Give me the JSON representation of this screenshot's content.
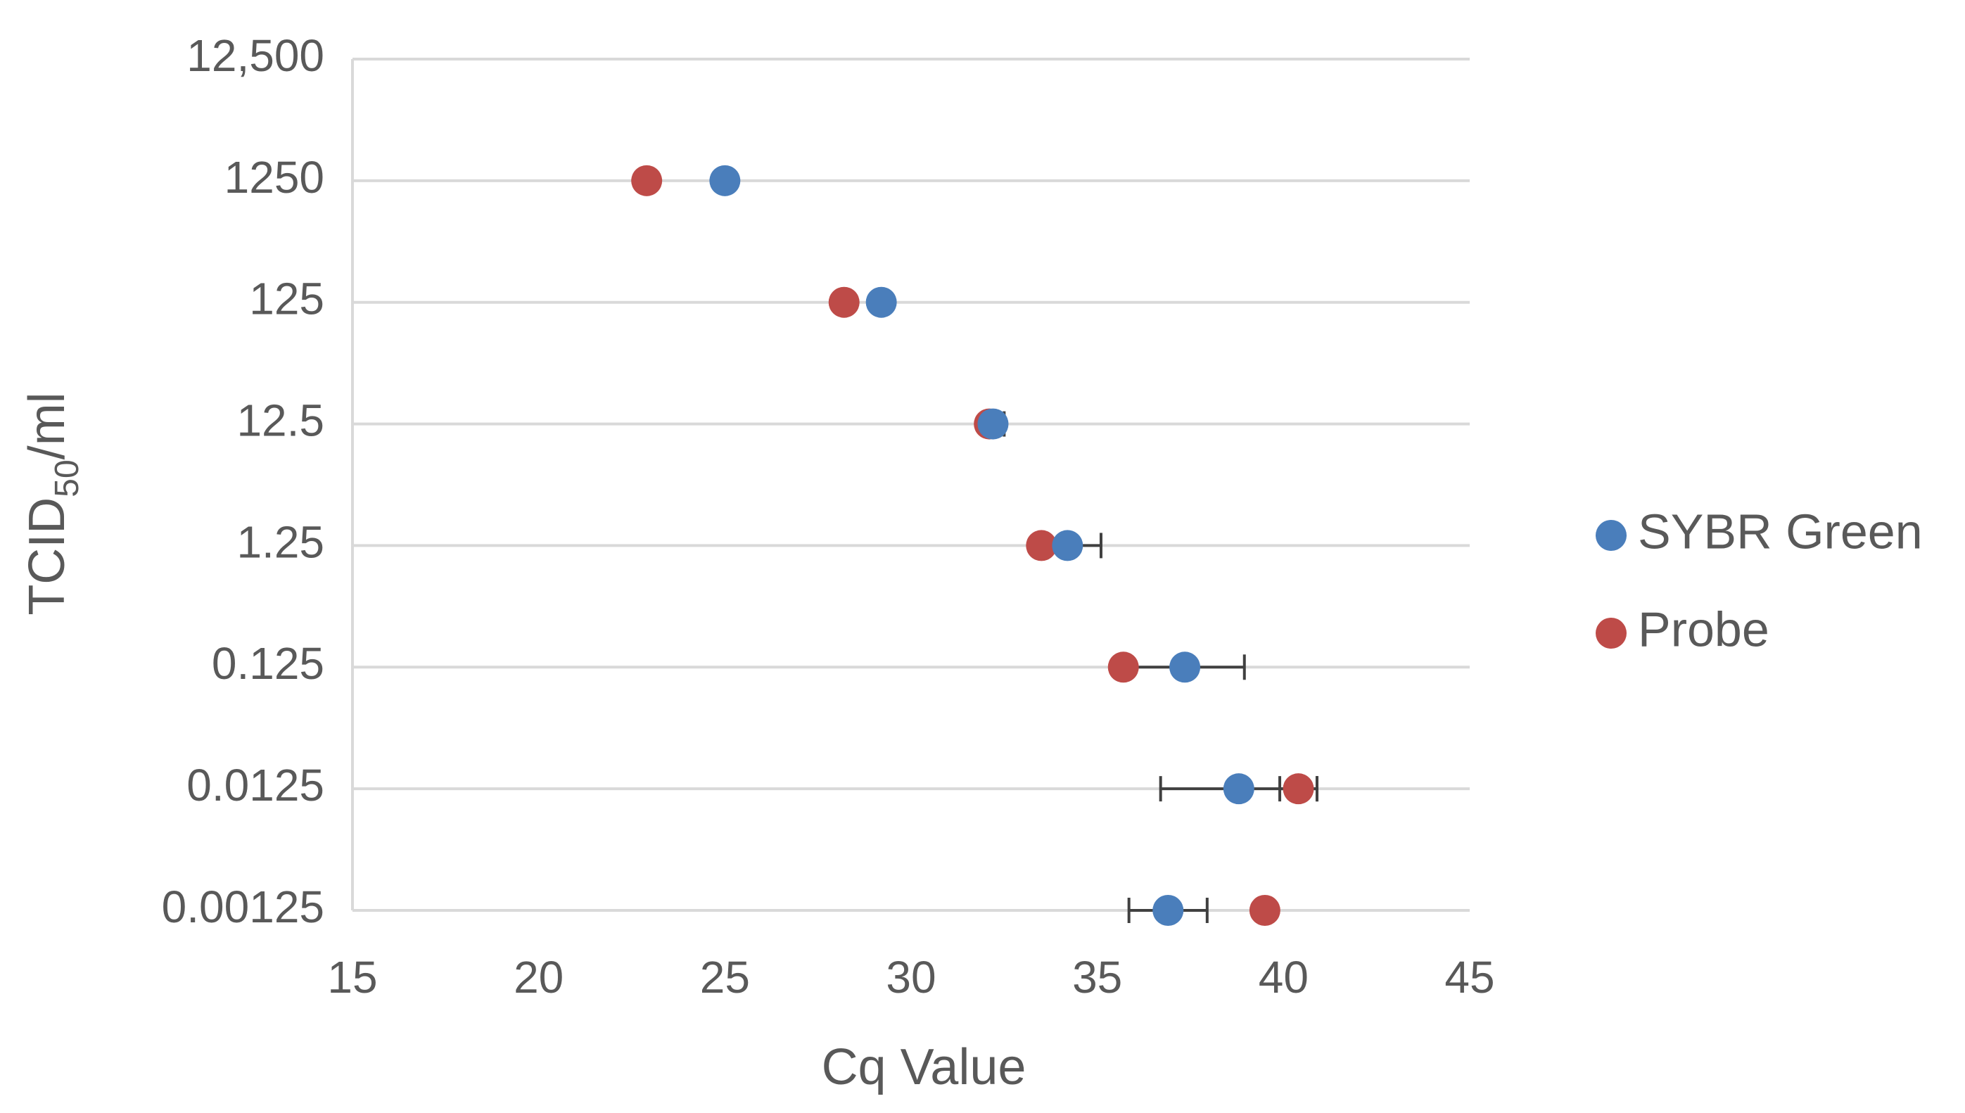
{
  "chart_data": {
    "type": "scatter",
    "x_label": "Cq Value",
    "y_label_parts": [
      "TCID",
      "50",
      "/ml"
    ],
    "categories": [
      "12,500",
      "1250",
      "125",
      "12.5",
      "1.25",
      "0.125",
      "0.0125",
      "0.00125"
    ],
    "xlim": [
      15,
      45
    ],
    "xticks": [
      15,
      20,
      25,
      30,
      35,
      40,
      45
    ],
    "grid": true,
    "legend": "right",
    "series": [
      {
        "name": "SYBR Green",
        "color": "#4a7ebb",
        "values": [
          null,
          25.0,
          29.2,
          32.2,
          34.2,
          37.35,
          38.8,
          36.9
        ],
        "errors": [
          null,
          null,
          null,
          0.3,
          0.9,
          1.6,
          2.1,
          1.05
        ]
      },
      {
        "name": "Probe",
        "color": "#be4b48",
        "values": [
          null,
          22.9,
          28.2,
          32.1,
          33.5,
          35.7,
          40.4,
          39.5
        ],
        "errors": [
          null,
          null,
          null,
          null,
          null,
          null,
          0.5,
          null
        ]
      }
    ]
  }
}
